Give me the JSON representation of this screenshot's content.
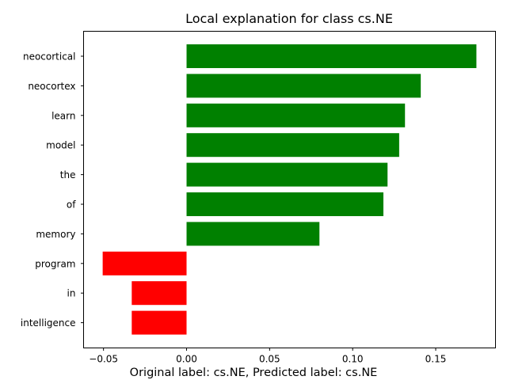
{
  "chart_data": {
    "type": "bar",
    "orientation": "horizontal",
    "title": "Local explanation for class cs.NE",
    "xlabel": "",
    "ylabel": "",
    "categories": [
      "neocortical",
      "neocortex",
      "learn",
      "model",
      "the",
      "of",
      "memory",
      "program",
      "in",
      "intelligence"
    ],
    "values": [
      0.1745,
      0.141,
      0.1315,
      0.128,
      0.121,
      0.1185,
      0.08,
      -0.0505,
      -0.033,
      -0.033
    ],
    "xlim": [
      -0.062,
      0.186
    ],
    "x_ticks": [
      -0.05,
      0.0,
      0.05,
      0.1,
      0.15
    ],
    "x_tick_labels": [
      "−0.05",
      "0.00",
      "0.05",
      "0.10",
      "0.15"
    ],
    "grid": false,
    "colors": {
      "positive": "#008000",
      "negative": "#ff0000"
    }
  },
  "caption": "Original label: cs.NE, Predicted label: cs.NE"
}
